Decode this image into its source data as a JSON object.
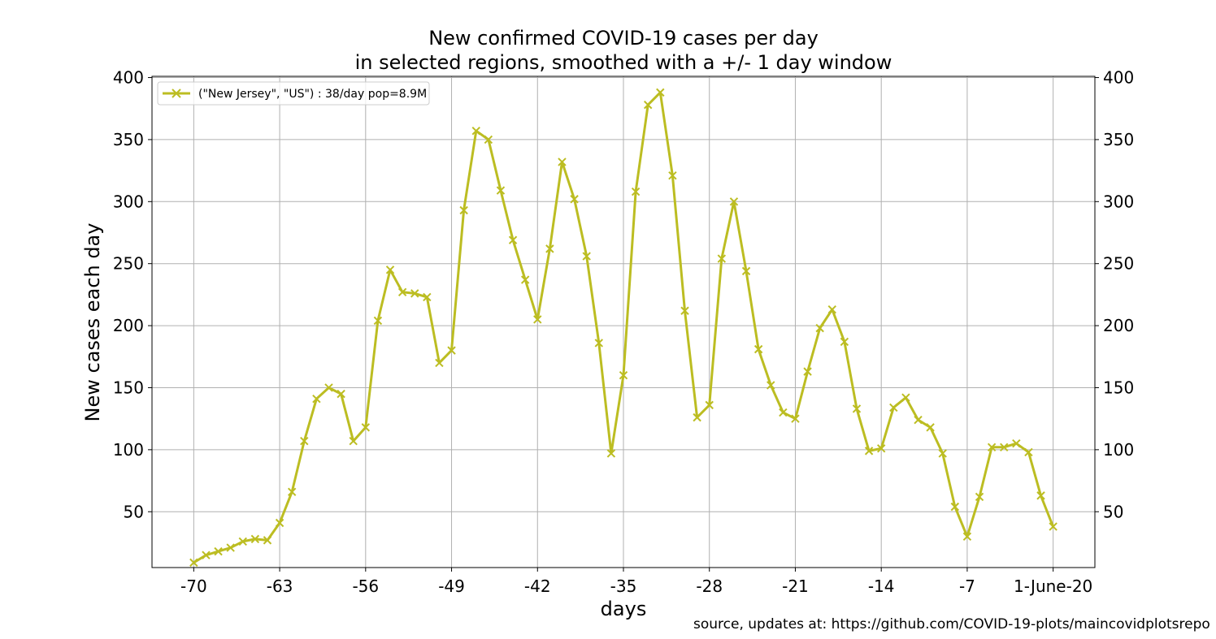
{
  "chart_data": {
    "type": "line",
    "title": [
      "New confirmed COVID-19 cases per day",
      "in selected regions, smoothed with a +/- 1 day window"
    ],
    "xlabel": "days",
    "ylabel": "New cases each day",
    "source": "source, updates at: https://github.com/COVID-19-plots/maincovidplotsrepo",
    "xlim": [
      -73.4,
      3.4
    ],
    "ylim": [
      5,
      401
    ],
    "x_ticks": [
      {
        "value": -70,
        "label": "-70"
      },
      {
        "value": -63,
        "label": "-63"
      },
      {
        "value": -56,
        "label": "-56"
      },
      {
        "value": -49,
        "label": "-49"
      },
      {
        "value": -42,
        "label": "-42"
      },
      {
        "value": -35,
        "label": "-35"
      },
      {
        "value": -28,
        "label": "-28"
      },
      {
        "value": -21,
        "label": "-21"
      },
      {
        "value": -14,
        "label": "-14"
      },
      {
        "value": -7,
        "label": "-7"
      },
      {
        "value": 0,
        "label": "1-June-20"
      }
    ],
    "y_ticks": [
      50,
      100,
      150,
      200,
      250,
      300,
      350,
      400
    ],
    "grid": true,
    "legend_position": "top-left",
    "marker": "x",
    "x": [
      -70,
      -69,
      -68,
      -67,
      -66,
      -65,
      -64,
      -63,
      -62,
      -61,
      -60,
      -59,
      -58,
      -57,
      -56,
      -55,
      -54,
      -53,
      -52,
      -51,
      -50,
      -49,
      -48,
      -47,
      -46,
      -45,
      -44,
      -43,
      -42,
      -41,
      -40,
      -39,
      -38,
      -37,
      -36,
      -35,
      -34,
      -33,
      -32,
      -31,
      -30,
      -29,
      -28,
      -27,
      -26,
      -25,
      -24,
      -23,
      -22,
      -21,
      -20,
      -19,
      -18,
      -17,
      -16,
      -15,
      -14,
      -13,
      -12,
      -11,
      -10,
      -9,
      -8,
      -7,
      -6,
      -5,
      -4,
      -3,
      -2,
      -1,
      0
    ],
    "series": [
      {
        "name": "(\"New Jersey\", \"US\") : 38/day pop=8.9M",
        "color": "#bcbd22",
        "values": [
          9,
          15,
          18,
          21,
          26,
          28,
          27,
          41,
          66,
          107,
          141,
          150,
          145,
          107,
          118,
          204,
          245,
          227,
          226,
          223,
          170,
          180,
          293,
          357,
          350,
          309,
          269,
          237,
          205,
          262,
          332,
          302,
          256,
          186,
          97,
          160,
          308,
          378,
          388,
          321,
          212,
          126,
          136,
          254,
          300,
          244,
          181,
          152,
          130,
          125,
          163,
          198,
          213,
          187,
          133,
          99,
          101,
          134,
          142,
          124,
          118,
          97,
          54,
          30,
          62,
          102,
          102,
          105,
          98,
          63,
          38
        ]
      }
    ]
  }
}
